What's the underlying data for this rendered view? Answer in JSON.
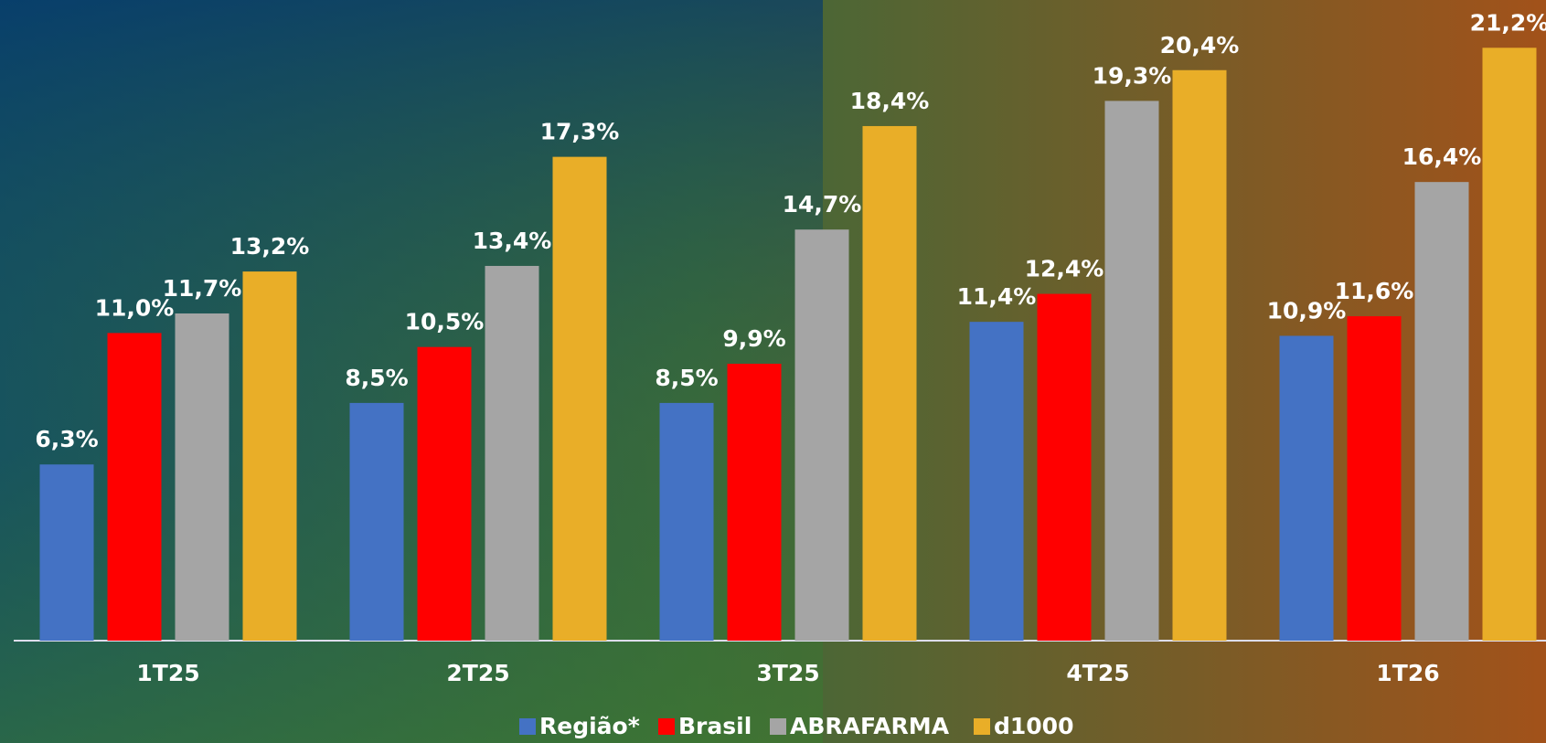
{
  "chart_data": {
    "type": "bar",
    "categories": [
      "1T25",
      "2T25",
      "3T25",
      "4T25",
      "1T26"
    ],
    "series": [
      {
        "name": "Região*",
        "color": "#4472c4",
        "values": [
          6.3,
          8.5,
          8.5,
          11.4,
          10.9
        ],
        "value_labels": [
          "6,3%",
          "8,5%",
          "8,5%",
          "11,4%",
          "10,9%"
        ]
      },
      {
        "name": "Brasil",
        "color": "#ff0000",
        "values": [
          11.0,
          10.5,
          9.9,
          12.4,
          11.6
        ],
        "value_labels": [
          "11,0%",
          "10,5%",
          "9,9%",
          "12,4%",
          "11,6%"
        ]
      },
      {
        "name": "ABRAFARMA",
        "color": "#a5a5a5",
        "values": [
          11.7,
          13.4,
          14.7,
          19.3,
          16.4
        ],
        "value_labels": [
          "11,7%",
          "13,4%",
          "14,7%",
          "19,3%",
          "16,4%"
        ]
      },
      {
        "name": "d1000",
        "color": "#e9ae28",
        "values": [
          13.2,
          17.3,
          18.4,
          20.4,
          21.2
        ],
        "value_labels": [
          "13,2%",
          "17,3%",
          "18,4%",
          "20,4%",
          "21,2%"
        ]
      }
    ]
  }
}
